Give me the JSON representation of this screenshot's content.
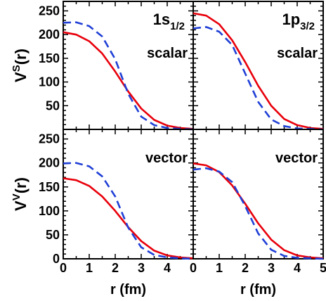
{
  "chart_data": [
    {
      "type": "line",
      "panel_label": "1s",
      "panel_label_sub": "1/2",
      "potential_label": "scalar",
      "ylabel_main": "V",
      "ylabel_sup": "S",
      "ylabel_tail": "(r)",
      "xlabel": "",
      "xlim": [
        0,
        5
      ],
      "ylim": [
        0,
        270
      ],
      "xticks": [],
      "yticks": [
        "50",
        "100",
        "150",
        "200",
        "250"
      ],
      "series": [
        {
          "style": "solid",
          "color": "#e8000b",
          "x": [
            0,
            0.5,
            1,
            1.5,
            2,
            2.5,
            3,
            3.5,
            4,
            4.5,
            5
          ],
          "y": [
            205,
            200,
            186,
            160,
            122,
            80,
            44,
            20,
            8,
            3,
            1
          ]
        },
        {
          "style": "dashed",
          "color": "#1f3fd6",
          "x": [
            0,
            0.5,
            1,
            1.5,
            2,
            2.5,
            3,
            3.5,
            4,
            4.5,
            5
          ],
          "y": [
            225,
            226,
            218,
            196,
            148,
            75,
            27,
            9,
            3,
            1,
            0
          ]
        }
      ]
    },
    {
      "type": "line",
      "panel_label": "1p",
      "panel_label_sub": "3/2",
      "potential_label": "scalar",
      "ylabel_main": "",
      "ylabel_sup": "",
      "ylabel_tail": "",
      "xlabel": "",
      "xlim": [
        0,
        5
      ],
      "ylim": [
        0,
        270
      ],
      "xticks": [],
      "yticks": [],
      "series": [
        {
          "style": "solid",
          "color": "#e8000b",
          "x": [
            0,
            0.5,
            1,
            1.5,
            2,
            2.5,
            3,
            3.5,
            4,
            4.5,
            5
          ],
          "y": [
            245,
            240,
            222,
            188,
            142,
            92,
            50,
            22,
            9,
            3,
            1
          ]
        },
        {
          "style": "dashed",
          "color": "#1f3fd6",
          "x": [
            0,
            0.5,
            1,
            1.5,
            2,
            2.5,
            3,
            3.5,
            4,
            4.5,
            5
          ],
          "y": [
            213,
            216,
            206,
            178,
            118,
            58,
            21,
            7,
            2,
            1,
            0
          ]
        }
      ]
    },
    {
      "type": "line",
      "panel_label": "",
      "panel_label_sub": "",
      "potential_label": "vector",
      "ylabel_main": "V",
      "ylabel_sup": "V",
      "ylabel_tail": "(r)",
      "xlabel": "r (fm)",
      "xlim": [
        0,
        5
      ],
      "ylim": [
        0,
        270
      ],
      "xticks": [
        "0",
        "1",
        "2",
        "3",
        "4"
      ],
      "yticks": [
        "0",
        "50",
        "100",
        "150",
        "200",
        "250"
      ],
      "series": [
        {
          "style": "solid",
          "color": "#e8000b",
          "x": [
            0,
            0.5,
            1,
            1.5,
            2,
            2.5,
            3,
            3.5,
            4,
            4.5,
            5
          ],
          "y": [
            168,
            164,
            152,
            130,
            100,
            66,
            37,
            17,
            7,
            3,
            1
          ]
        },
        {
          "style": "dashed",
          "color": "#1f3fd6",
          "x": [
            0,
            0.5,
            1,
            1.5,
            2,
            2.5,
            3,
            3.5,
            4,
            4.5,
            5
          ],
          "y": [
            199,
            200,
            193,
            172,
            130,
            65,
            24,
            8,
            3,
            1,
            0
          ]
        }
      ]
    },
    {
      "type": "line",
      "panel_label": "",
      "panel_label_sub": "",
      "potential_label": "vector",
      "ylabel_main": "",
      "ylabel_sup": "",
      "ylabel_tail": "",
      "xlabel": "r (fm)",
      "xlim": [
        0,
        5
      ],
      "ylim": [
        0,
        270
      ],
      "xticks": [
        "0",
        "1",
        "2",
        "3",
        "4",
        "5"
      ],
      "yticks": [],
      "series": [
        {
          "style": "solid",
          "color": "#e8000b",
          "x": [
            0,
            0.5,
            1,
            1.5,
            2,
            2.5,
            3,
            3.5,
            4,
            4.5,
            5
          ],
          "y": [
            199,
            195,
            181,
            153,
            115,
            74,
            40,
            18,
            7,
            3,
            1
          ]
        },
        {
          "style": "dashed",
          "color": "#1f3fd6",
          "x": [
            0,
            0.5,
            1,
            1.5,
            2,
            2.5,
            3,
            3.5,
            4,
            4.5,
            5
          ],
          "y": [
            186,
            189,
            182,
            160,
            110,
            53,
            19,
            6,
            2,
            1,
            0
          ]
        }
      ]
    }
  ]
}
